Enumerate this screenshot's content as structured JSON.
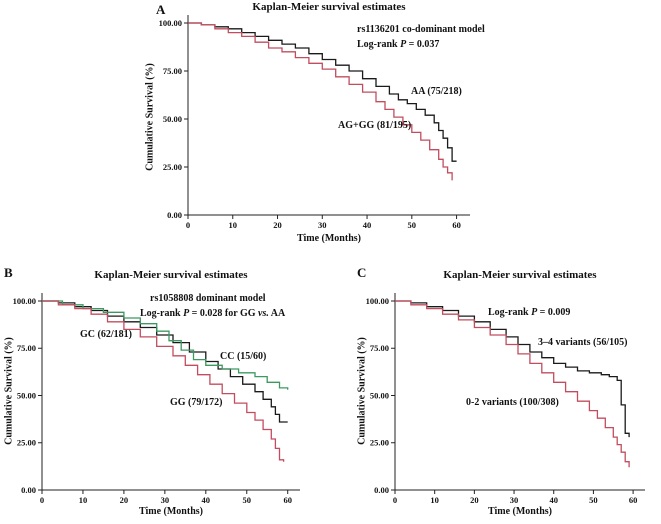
{
  "figure": {
    "background": "#ffffff"
  },
  "colors": {
    "black_series": "#1a1a1a",
    "red_series": "#c24d5e",
    "green_series": "#3d9960",
    "axis": "#222222"
  },
  "chart_data": [
    {
      "type": "line",
      "panel_label": "A",
      "title": "Kaplan-Meier survival estimates",
      "xlabel": "Time (Months)",
      "ylabel": "Cumulative Survival (%)",
      "xlim": [
        0,
        63
      ],
      "ylim": [
        0,
        100
      ],
      "grid": false,
      "legend_position": "annotated",
      "xticks": {
        "values": [
          0,
          10,
          20,
          30,
          40,
          50,
          60
        ],
        "labels": [
          "0",
          "10",
          "20",
          "30",
          "40",
          "50",
          "60"
        ]
      },
      "yticks": {
        "values": [
          0,
          25,
          50,
          75,
          100
        ],
        "labels": [
          "0.00",
          "25.00",
          "50.00",
          "75.00",
          "100.00"
        ]
      },
      "model_label": "rs1136201 co-dominant model",
      "log_rank": [
        "Log-rank ",
        "P",
        " = 0.037"
      ],
      "series": [
        {
          "name": "AA (75/218)",
          "color": "#1a1a1a",
          "points": [
            [
              0,
              100
            ],
            [
              3,
              99
            ],
            [
              6,
              98
            ],
            [
              9,
              97
            ],
            [
              12,
              95
            ],
            [
              15,
              93
            ],
            [
              18,
              91
            ],
            [
              21,
              89
            ],
            [
              24,
              87
            ],
            [
              27,
              84
            ],
            [
              30,
              81
            ],
            [
              33,
              78
            ],
            [
              36,
              75
            ],
            [
              39,
              71
            ],
            [
              42,
              67
            ],
            [
              45,
              63
            ],
            [
              47,
              60
            ],
            [
              49,
              58
            ],
            [
              51,
              55
            ],
            [
              53,
              52
            ],
            [
              55,
              48
            ],
            [
              56,
              44
            ],
            [
              57,
              40
            ],
            [
              58,
              35
            ],
            [
              59,
              28
            ],
            [
              60,
              28
            ]
          ]
        },
        {
          "name": "AG+GG (81/195)",
          "color": "#c24d5e",
          "points": [
            [
              0,
              100
            ],
            [
              3,
              99
            ],
            [
              6,
              97
            ],
            [
              9,
              95
            ],
            [
              12,
              93
            ],
            [
              15,
              90
            ],
            [
              18,
              87
            ],
            [
              21,
              85
            ],
            [
              24,
              82
            ],
            [
              27,
              79
            ],
            [
              30,
              76
            ],
            [
              33,
              72
            ],
            [
              36,
              68
            ],
            [
              39,
              64
            ],
            [
              42,
              59
            ],
            [
              44,
              55
            ],
            [
              46,
              51
            ],
            [
              48,
              47
            ],
            [
              50,
              43
            ],
            [
              52,
              39
            ],
            [
              54,
              34
            ],
            [
              56,
              29
            ],
            [
              57,
              25
            ],
            [
              58,
              22
            ],
            [
              59,
              18
            ]
          ]
        }
      ]
    },
    {
      "type": "line",
      "panel_label": "B",
      "title": "Kaplan-Meier survival estimates",
      "xlabel": "Time (Months)",
      "ylabel": "Cumulative Survival (%)",
      "xlim": [
        0,
        63
      ],
      "ylim": [
        0,
        100
      ],
      "grid": false,
      "legend_position": "annotated",
      "xticks": {
        "values": [
          0,
          10,
          20,
          30,
          40,
          50,
          60
        ],
        "labels": [
          "0",
          "10",
          "20",
          "30",
          "40",
          "50",
          "60"
        ]
      },
      "yticks": {
        "values": [
          0,
          25,
          50,
          75,
          100
        ],
        "labels": [
          "0.00",
          "25.00",
          "50.00",
          "75.00",
          "100.00"
        ]
      },
      "model_label": "rs1058808 dominant model",
      "log_rank": [
        "Log-rank ",
        "P",
        " = 0.028 for GG ",
        "vs.",
        " AA"
      ],
      "series": [
        {
          "name": "GC (62/181)",
          "color": "#1a1a1a",
          "points": [
            [
              0,
              100
            ],
            [
              4,
              99
            ],
            [
              8,
              97
            ],
            [
              12,
              95
            ],
            [
              16,
              92
            ],
            [
              20,
              89
            ],
            [
              24,
              86
            ],
            [
              28,
              82
            ],
            [
              32,
              78
            ],
            [
              36,
              73
            ],
            [
              40,
              68
            ],
            [
              43,
              64
            ],
            [
              46,
              60
            ],
            [
              49,
              56
            ],
            [
              52,
              52
            ],
            [
              54,
              48
            ],
            [
              56,
              44
            ],
            [
              57,
              40
            ],
            [
              58,
              36
            ],
            [
              60,
              36
            ]
          ]
        },
        {
          "name": "CC (15/60)",
          "color": "#3d9960",
          "points": [
            [
              0,
              100
            ],
            [
              5,
              98
            ],
            [
              10,
              96
            ],
            [
              15,
              94
            ],
            [
              20,
              91
            ],
            [
              24,
              88
            ],
            [
              28,
              84
            ],
            [
              31,
              79
            ],
            [
              34,
              74
            ],
            [
              37,
              69
            ],
            [
              40,
              66
            ],
            [
              44,
              64
            ],
            [
              48,
              62
            ],
            [
              52,
              60
            ],
            [
              55,
              57
            ],
            [
              58,
              54
            ],
            [
              60,
              53
            ]
          ]
        },
        {
          "name": "GG (79/172)",
          "color": "#c24d5e",
          "points": [
            [
              0,
              100
            ],
            [
              4,
              98
            ],
            [
              8,
              96
            ],
            [
              12,
              93
            ],
            [
              16,
              89
            ],
            [
              20,
              85
            ],
            [
              24,
              81
            ],
            [
              28,
              76
            ],
            [
              32,
              71
            ],
            [
              35,
              66
            ],
            [
              38,
              61
            ],
            [
              41,
              56
            ],
            [
              44,
              51
            ],
            [
              47,
              46
            ],
            [
              50,
              41
            ],
            [
              52,
              37
            ],
            [
              54,
              32
            ],
            [
              56,
              27
            ],
            [
              57,
              22
            ],
            [
              58,
              16
            ],
            [
              59,
              15
            ]
          ]
        }
      ]
    },
    {
      "type": "line",
      "panel_label": "C",
      "title": "Kaplan-Meier survival estimates",
      "xlabel": "Time (Months)",
      "ylabel": "Cumulative Survival (%)",
      "xlim": [
        0,
        63
      ],
      "ylim": [
        0,
        100
      ],
      "grid": false,
      "legend_position": "annotated",
      "xticks": {
        "values": [
          0,
          10,
          20,
          30,
          40,
          50,
          60
        ],
        "labels": [
          "0",
          "10",
          "20",
          "30",
          "40",
          "50",
          "60"
        ]
      },
      "yticks": {
        "values": [
          0,
          25,
          50,
          75,
          100
        ],
        "labels": [
          "0.00",
          "25.00",
          "50.00",
          "75.00",
          "100.00"
        ]
      },
      "log_rank": [
        "Log-rank ",
        "P",
        " = 0.009"
      ],
      "series": [
        {
          "name": "3–4 variants (56/105)",
          "color": "#1a1a1a",
          "points": [
            [
              0,
              100
            ],
            [
              4,
              99
            ],
            [
              8,
              97
            ],
            [
              12,
              95
            ],
            [
              16,
              92
            ],
            [
              20,
              89
            ],
            [
              24,
              85
            ],
            [
              28,
              81
            ],
            [
              31,
              77
            ],
            [
              34,
              73
            ],
            [
              37,
              70
            ],
            [
              40,
              67
            ],
            [
              43,
              65
            ],
            [
              46,
              63
            ],
            [
              49,
              62
            ],
            [
              52,
              61
            ],
            [
              54,
              60
            ],
            [
              56,
              58
            ],
            [
              57,
              45
            ],
            [
              58,
              30
            ],
            [
              59,
              28
            ]
          ]
        },
        {
          "name": "0-2 variants (100/308)",
          "color": "#c24d5e",
          "points": [
            [
              0,
              100
            ],
            [
              4,
              98
            ],
            [
              8,
              96
            ],
            [
              12,
              93
            ],
            [
              16,
              90
            ],
            [
              20,
              86
            ],
            [
              24,
              82
            ],
            [
              28,
              77
            ],
            [
              31,
              72
            ],
            [
              34,
              67
            ],
            [
              37,
              62
            ],
            [
              40,
              57
            ],
            [
              43,
              52
            ],
            [
              46,
              47
            ],
            [
              49,
              42
            ],
            [
              51,
              38
            ],
            [
              53,
              33
            ],
            [
              55,
              28
            ],
            [
              56,
              24
            ],
            [
              57,
              20
            ],
            [
              58,
              15
            ],
            [
              59,
              12
            ]
          ]
        }
      ]
    }
  ]
}
